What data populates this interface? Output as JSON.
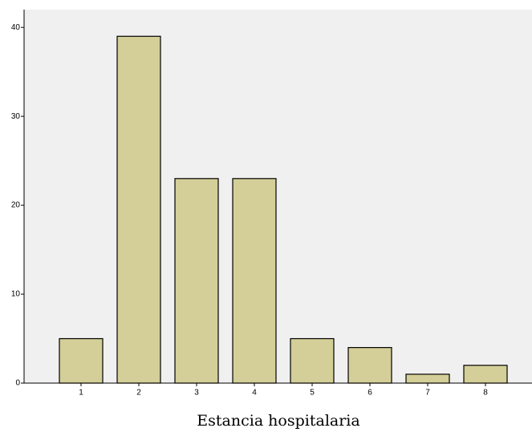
{
  "chart_data": {
    "type": "bar",
    "xlabel": "Estancia hospitalaria",
    "categories": [
      "1",
      "2",
      "3",
      "4",
      "5",
      "6",
      "7",
      "8"
    ],
    "values": [
      5,
      39,
      23,
      23,
      5,
      4,
      1,
      2
    ],
    "color": "#d4cf98",
    "ylim": [
      0,
      42
    ],
    "yticks": [
      0,
      10,
      20,
      30,
      40
    ],
    "grid": false
  }
}
